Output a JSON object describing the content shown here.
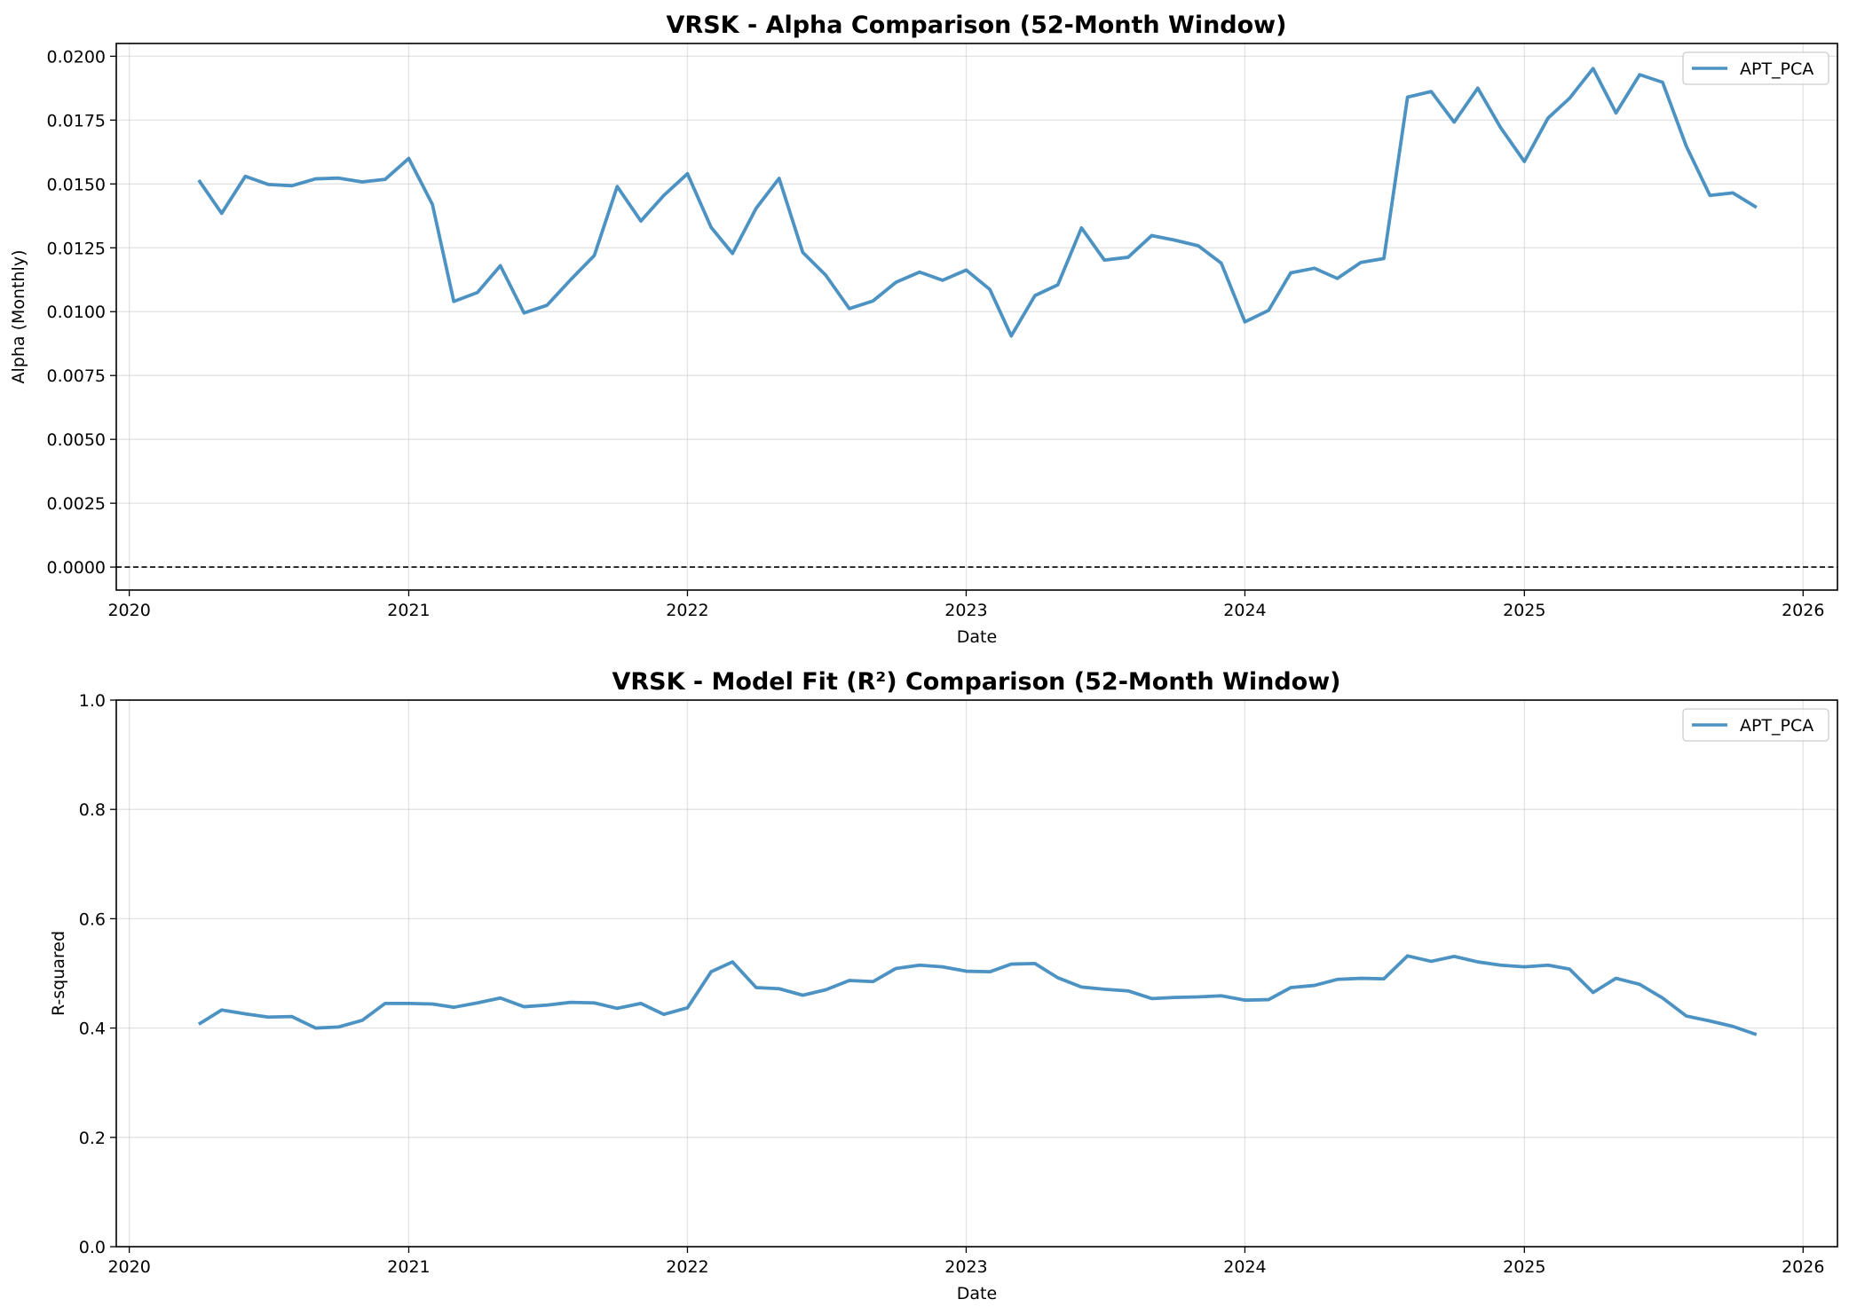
{
  "chart_data": [
    {
      "type": "line",
      "title": "VRSK - Alpha Comparison (52-Month Window)",
      "xlabel": "Date",
      "ylabel": "Alpha (Monthly)",
      "x_ticks": [
        "2020",
        "2021",
        "2022",
        "2023",
        "2024",
        "2025",
        "2026"
      ],
      "y_ticks": [
        "0.0000",
        "0.0025",
        "0.0050",
        "0.0075",
        "0.0100",
        "0.0125",
        "0.0150",
        "0.0175",
        "0.0200"
      ],
      "ylim": [
        -0.0009,
        0.0205
      ],
      "xlim": [
        "2019-12-15",
        "2026-02-15"
      ],
      "grid": true,
      "legend": "upper right",
      "reference_line": {
        "y": 0.0,
        "style": "dashed",
        "color": "#000000"
      },
      "x": [
        "2020-04-01",
        "2020-05-01",
        "2020-06-01",
        "2020-07-01",
        "2020-08-01",
        "2020-09-01",
        "2020-10-01",
        "2020-11-01",
        "2020-12-01",
        "2021-01-01",
        "2021-02-01",
        "2021-03-01",
        "2021-04-01",
        "2021-05-01",
        "2021-06-01",
        "2021-07-01",
        "2021-08-01",
        "2021-09-01",
        "2021-10-01",
        "2021-11-01",
        "2021-12-01",
        "2022-01-01",
        "2022-02-01",
        "2022-03-01",
        "2022-04-01",
        "2022-05-01",
        "2022-06-01",
        "2022-07-01",
        "2022-08-01",
        "2022-09-01",
        "2022-10-01",
        "2022-11-01",
        "2022-12-01",
        "2023-01-01",
        "2023-02-01",
        "2023-03-01",
        "2023-04-01",
        "2023-05-01",
        "2023-06-01",
        "2023-07-01",
        "2023-08-01",
        "2023-09-01",
        "2023-10-01",
        "2023-11-01",
        "2023-12-01",
        "2024-01-01",
        "2024-02-01",
        "2024-03-01",
        "2024-04-01",
        "2024-05-01",
        "2024-06-01",
        "2024-07-01",
        "2024-08-01",
        "2024-09-01",
        "2024-10-01",
        "2024-11-01",
        "2024-12-01",
        "2025-01-01",
        "2025-02-01",
        "2025-03-01",
        "2025-04-01",
        "2025-05-01",
        "2025-06-01",
        "2025-07-01",
        "2025-08-01",
        "2025-09-01",
        "2025-10-01",
        "2025-11-01"
      ],
      "series": [
        {
          "name": "APT_PCA",
          "color": "#1f77b4",
          "values": [
            0.01515,
            0.01385,
            0.0153,
            0.01498,
            0.01493,
            0.0152,
            0.01523,
            0.01508,
            0.01518,
            0.016,
            0.0142,
            0.0104,
            0.01075,
            0.0118,
            0.00995,
            0.01025,
            0.01125,
            0.0122,
            0.0149,
            0.01355,
            0.01455,
            0.0154,
            0.0133,
            0.01228,
            0.01405,
            0.01522,
            0.01232,
            0.01143,
            0.01012,
            0.01042,
            0.01115,
            0.01155,
            0.01123,
            0.01163,
            0.01087,
            0.00905,
            0.01063,
            0.01105,
            0.01328,
            0.01202,
            0.01213,
            0.01298,
            0.0128,
            0.01258,
            0.0119,
            0.0096,
            0.01005,
            0.01152,
            0.0117,
            0.0113,
            0.01193,
            0.01208,
            0.0184,
            0.01862,
            0.01742,
            0.01875,
            0.0172,
            0.01588,
            0.01758,
            0.01835,
            0.01952,
            0.01778,
            0.01928,
            0.01898,
            0.01648,
            0.01455,
            0.01465,
            0.01408
          ]
        }
      ]
    },
    {
      "type": "line",
      "title": "VRSK - Model Fit (R²) Comparison (52-Month Window)",
      "xlabel": "Date",
      "ylabel": "R-squared",
      "x_ticks": [
        "2020",
        "2021",
        "2022",
        "2023",
        "2024",
        "2025",
        "2026"
      ],
      "y_ticks": [
        "0.0",
        "0.2",
        "0.4",
        "0.6",
        "0.8",
        "1.0"
      ],
      "ylim": [
        0.0,
        1.0
      ],
      "xlim": [
        "2019-12-15",
        "2026-02-15"
      ],
      "grid": true,
      "legend": "upper right",
      "x": [
        "2020-04-01",
        "2020-05-01",
        "2020-06-01",
        "2020-07-01",
        "2020-08-01",
        "2020-09-01",
        "2020-10-01",
        "2020-11-01",
        "2020-12-01",
        "2021-01-01",
        "2021-02-01",
        "2021-03-01",
        "2021-04-01",
        "2021-05-01",
        "2021-06-01",
        "2021-07-01",
        "2021-08-01",
        "2021-09-01",
        "2021-10-01",
        "2021-11-01",
        "2021-12-01",
        "2022-01-01",
        "2022-02-01",
        "2022-03-01",
        "2022-04-01",
        "2022-05-01",
        "2022-06-01",
        "2022-07-01",
        "2022-08-01",
        "2022-09-01",
        "2022-10-01",
        "2022-11-01",
        "2022-12-01",
        "2023-01-01",
        "2023-02-01",
        "2023-03-01",
        "2023-04-01",
        "2023-05-01",
        "2023-06-01",
        "2023-07-01",
        "2023-08-01",
        "2023-09-01",
        "2023-10-01",
        "2023-11-01",
        "2023-12-01",
        "2024-01-01",
        "2024-02-01",
        "2024-03-01",
        "2024-04-01",
        "2024-05-01",
        "2024-06-01",
        "2024-07-01",
        "2024-08-01",
        "2024-09-01",
        "2024-10-01",
        "2024-11-01",
        "2024-12-01",
        "2025-01-01",
        "2025-02-01",
        "2025-03-01",
        "2025-04-01",
        "2025-05-01",
        "2025-06-01",
        "2025-07-01",
        "2025-08-01",
        "2025-09-01",
        "2025-10-01",
        "2025-11-01"
      ],
      "series": [
        {
          "name": "APT_PCA",
          "color": "#1f77b4",
          "values": [
            0.407,
            0.433,
            0.426,
            0.42,
            0.421,
            0.4,
            0.402,
            0.414,
            0.445,
            0.445,
            0.444,
            0.438,
            0.446,
            0.455,
            0.439,
            0.442,
            0.447,
            0.446,
            0.436,
            0.445,
            0.425,
            0.437,
            0.503,
            0.521,
            0.474,
            0.472,
            0.46,
            0.47,
            0.487,
            0.485,
            0.509,
            0.515,
            0.512,
            0.504,
            0.503,
            0.517,
            0.518,
            0.492,
            0.475,
            0.471,
            0.468,
            0.454,
            0.456,
            0.457,
            0.459,
            0.451,
            0.452,
            0.474,
            0.478,
            0.489,
            0.491,
            0.49,
            0.532,
            0.522,
            0.531,
            0.521,
            0.515,
            0.512,
            0.515,
            0.508,
            0.465,
            0.491,
            0.48,
            0.455,
            0.422,
            0.413,
            0.403,
            0.388
          ]
        }
      ]
    }
  ]
}
